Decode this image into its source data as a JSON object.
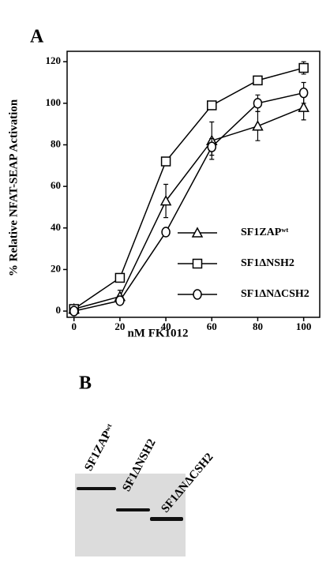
{
  "panel_a": {
    "label": "A"
  },
  "chart_data": {
    "type": "line",
    "x_label": "nM FK1012",
    "y_label": "% Relative NFAT-SEAP Activation",
    "x": [
      0,
      20,
      40,
      60,
      80,
      100
    ],
    "series": [
      {
        "name": "SF1ZAPʷᵗ",
        "color": "#000000",
        "marker": "triangle",
        "values": [
          1,
          7,
          53,
          82,
          89,
          98
        ],
        "errors": [
          0,
          3,
          8,
          9,
          7,
          6
        ]
      },
      {
        "name": "SF1ΔNSH2",
        "color": "#000000",
        "marker": "square",
        "values": [
          1,
          16,
          72,
          99,
          111,
          117
        ],
        "errors": [
          0,
          0,
          2,
          0,
          1,
          3
        ]
      },
      {
        "name": "SF1ΔNΔCSH2",
        "color": "#000000",
        "marker": "circle",
        "values": [
          0,
          5,
          38,
          79,
          100,
          105
        ],
        "errors": [
          0,
          0,
          0,
          4,
          4,
          5
        ]
      }
    ],
    "xlim": [
      -3,
      107
    ],
    "ylim": [
      -3,
      125
    ],
    "xticks": [
      0,
      20,
      40,
      60,
      80,
      100
    ],
    "yticks": [
      0,
      20,
      40,
      60,
      80,
      100,
      120
    ]
  },
  "panel_b": {
    "label": "B",
    "lanes": [
      "SF1ZAPʷᵗ",
      "SF1ΔNSH2",
      "SF1ΔNΔCSH2"
    ]
  }
}
